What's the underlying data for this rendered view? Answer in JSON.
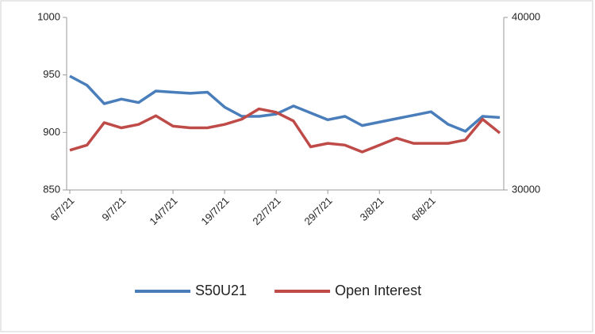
{
  "chart_data": {
    "type": "line",
    "categories": [
      "6/7/21",
      null,
      null,
      "9/7/21",
      null,
      null,
      "14/7/21",
      null,
      null,
      "19/7/21",
      null,
      null,
      "22/7/21",
      null,
      null,
      "29/7/21",
      null,
      null,
      "3/8/21",
      null,
      null,
      "6/8/21",
      null,
      null,
      null,
      null
    ],
    "series": [
      {
        "name": "S50U21",
        "color": "#4a7ebb",
        "values": [
          949,
          941,
          925,
          929,
          926,
          936,
          935,
          934,
          935,
          922,
          914,
          914,
          916,
          923,
          917,
          911,
          914,
          906,
          909,
          912,
          915,
          918,
          907,
          901,
          914,
          913
        ]
      },
      {
        "name": "Open Interest",
        "color": "#be4b48",
        "axis": "y2",
        "values": [
          32300,
          32600,
          33900,
          33600,
          33800,
          34300,
          33700,
          33600,
          33600,
          33800,
          34100,
          34700,
          34500,
          34000,
          32500,
          32700,
          32600,
          32200,
          32600,
          33000,
          32700,
          32700,
          32700,
          32900,
          34100,
          33300
        ]
      }
    ],
    "ylim": [
      850,
      1000
    ],
    "yticks": [
      850,
      900,
      950,
      1000
    ],
    "y2lim": [
      30000,
      40000
    ],
    "y2ticks": [
      30000,
      40000
    ],
    "legend": "bottom"
  }
}
